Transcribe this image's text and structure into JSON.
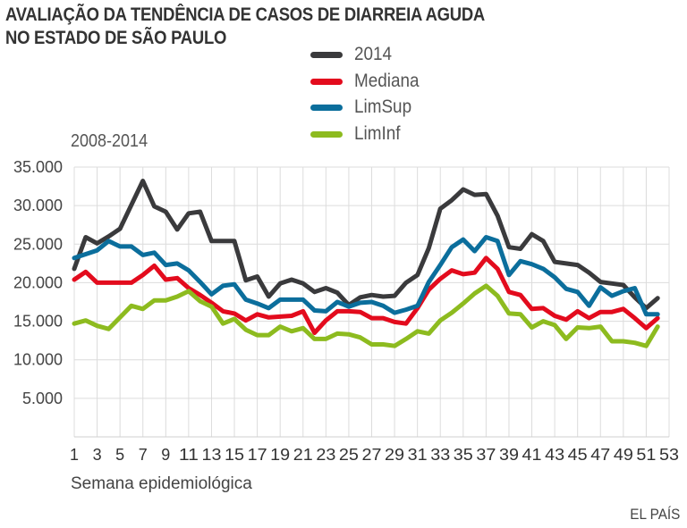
{
  "chart_data": {
    "type": "line",
    "title": "AVALIAÇÃO DA TENDÊNCIA DE CASOS DE DIARREIA AGUDA NO ESTADO DE SÃO PAULO",
    "title_lines": [
      "AVALIAÇÃO DA TENDÊNCIA DE CASOS DE DIARREIA AGUDA",
      "NO ESTADO DE SÃO PAULO"
    ],
    "subtitle": "2008-2014",
    "xlabel": "Semana epidemiológica",
    "ylabel": "",
    "source": "EL PAÍS",
    "xlim": [
      1,
      53
    ],
    "ylim": [
      0,
      35000
    ],
    "yticks": [
      5000,
      10000,
      15000,
      20000,
      25000,
      30000,
      35000
    ],
    "ytick_labels": [
      "5.000",
      "10.000",
      "15.000",
      "20.000",
      "25.000",
      "30.000",
      "35.000"
    ],
    "xticks": [
      1,
      3,
      5,
      7,
      9,
      11,
      13,
      15,
      17,
      19,
      21,
      23,
      25,
      27,
      29,
      31,
      33,
      35,
      37,
      39,
      41,
      43,
      45,
      47,
      49,
      51,
      53
    ],
    "grid": true,
    "legend_position": "top-center",
    "series": [
      {
        "name": "2014",
        "color": "#3a3a3c",
        "x": [
          1,
          2,
          3,
          4,
          5,
          6,
          7,
          8,
          9,
          10,
          11,
          12,
          13,
          14,
          15,
          16,
          17,
          18,
          19,
          20,
          21,
          22,
          23,
          24,
          25,
          26,
          27,
          28,
          29,
          30,
          31,
          32,
          33,
          34,
          35,
          36,
          37,
          38,
          39,
          40,
          41,
          42,
          43,
          44,
          45,
          46,
          47,
          48,
          49,
          50,
          51,
          52
        ],
        "values": [
          21800,
          25900,
          25100,
          26000,
          27000,
          30100,
          33200,
          29900,
          29200,
          26900,
          29000,
          29200,
          25400,
          25400,
          25400,
          20300,
          20800,
          18200,
          19900,
          20400,
          19900,
          18800,
          19300,
          18700,
          17100,
          18100,
          18400,
          18200,
          18300,
          20000,
          21000,
          24500,
          29600,
          30700,
          32100,
          31400,
          31500,
          28700,
          24600,
          24400,
          26300,
          25400,
          22700,
          22500,
          22300,
          21300,
          20100,
          19900,
          19700,
          18100,
          16700,
          18000
        ]
      },
      {
        "name": "Mediana",
        "color": "#e30b1d",
        "x": [
          1,
          2,
          3,
          4,
          5,
          6,
          7,
          8,
          9,
          10,
          11,
          12,
          13,
          14,
          15,
          16,
          17,
          18,
          19,
          20,
          21,
          22,
          23,
          24,
          25,
          26,
          27,
          28,
          29,
          30,
          31,
          32,
          33,
          34,
          35,
          36,
          37,
          38,
          39,
          40,
          41,
          42,
          43,
          44,
          45,
          46,
          47,
          48,
          49,
          50,
          51,
          52
        ],
        "values": [
          20400,
          21400,
          20000,
          20000,
          20000,
          20000,
          21000,
          22200,
          20400,
          20600,
          19300,
          18400,
          17400,
          16300,
          16000,
          15100,
          15900,
          15500,
          15600,
          15700,
          16300,
          13500,
          15100,
          16300,
          16300,
          16200,
          15400,
          15400,
          14900,
          14700,
          16700,
          19100,
          20500,
          21600,
          21100,
          21300,
          23200,
          21800,
          18800,
          18400,
          16600,
          16700,
          15700,
          15200,
          16300,
          15400,
          16200,
          16200,
          16600,
          15400,
          14100,
          15400
        ]
      },
      {
        "name": "LimSup",
        "color": "#0b6e9c",
        "x": [
          1,
          2,
          3,
          4,
          5,
          6,
          7,
          8,
          9,
          10,
          11,
          12,
          13,
          14,
          15,
          16,
          17,
          18,
          19,
          20,
          21,
          22,
          23,
          24,
          25,
          26,
          27,
          28,
          29,
          30,
          31,
          32,
          33,
          34,
          35,
          36,
          37,
          38,
          39,
          40,
          41,
          42,
          43,
          44,
          45,
          46,
          47,
          48,
          49,
          50,
          51,
          52
        ],
        "values": [
          23200,
          23700,
          24200,
          25400,
          24700,
          24700,
          23600,
          23900,
          22300,
          22500,
          21600,
          20100,
          18500,
          19600,
          19800,
          17800,
          17300,
          16700,
          17800,
          17800,
          17800,
          16400,
          16300,
          17500,
          16900,
          17400,
          17500,
          17000,
          16100,
          16500,
          17000,
          20100,
          22300,
          24600,
          25600,
          24100,
          25900,
          25400,
          21000,
          22800,
          22400,
          21800,
          20700,
          19200,
          18800,
          17000,
          19400,
          18300,
          18900,
          19300,
          15900,
          15900
        ]
      },
      {
        "name": "LimInf",
        "color": "#8dbb1f",
        "x": [
          1,
          2,
          3,
          4,
          5,
          6,
          7,
          8,
          9,
          10,
          11,
          12,
          13,
          14,
          15,
          16,
          17,
          18,
          19,
          20,
          21,
          22,
          23,
          24,
          25,
          26,
          27,
          28,
          29,
          30,
          31,
          32,
          33,
          34,
          35,
          36,
          37,
          38,
          39,
          40,
          41,
          42,
          43,
          44,
          45,
          46,
          47,
          48,
          49,
          50,
          51,
          52
        ],
        "values": [
          14700,
          15100,
          14400,
          14000,
          15500,
          17000,
          16600,
          17700,
          17700,
          18200,
          18900,
          17600,
          16900,
          14700,
          15300,
          13900,
          13200,
          13200,
          14300,
          13700,
          14100,
          12700,
          12700,
          13400,
          13300,
          12900,
          12000,
          12000,
          11800,
          12700,
          13700,
          13400,
          15100,
          16100,
          17300,
          18600,
          19600,
          18300,
          16000,
          15900,
          14200,
          15000,
          14500,
          12700,
          14200,
          14100,
          14300,
          12400,
          12400,
          12200,
          11800,
          14300
        ]
      }
    ]
  }
}
